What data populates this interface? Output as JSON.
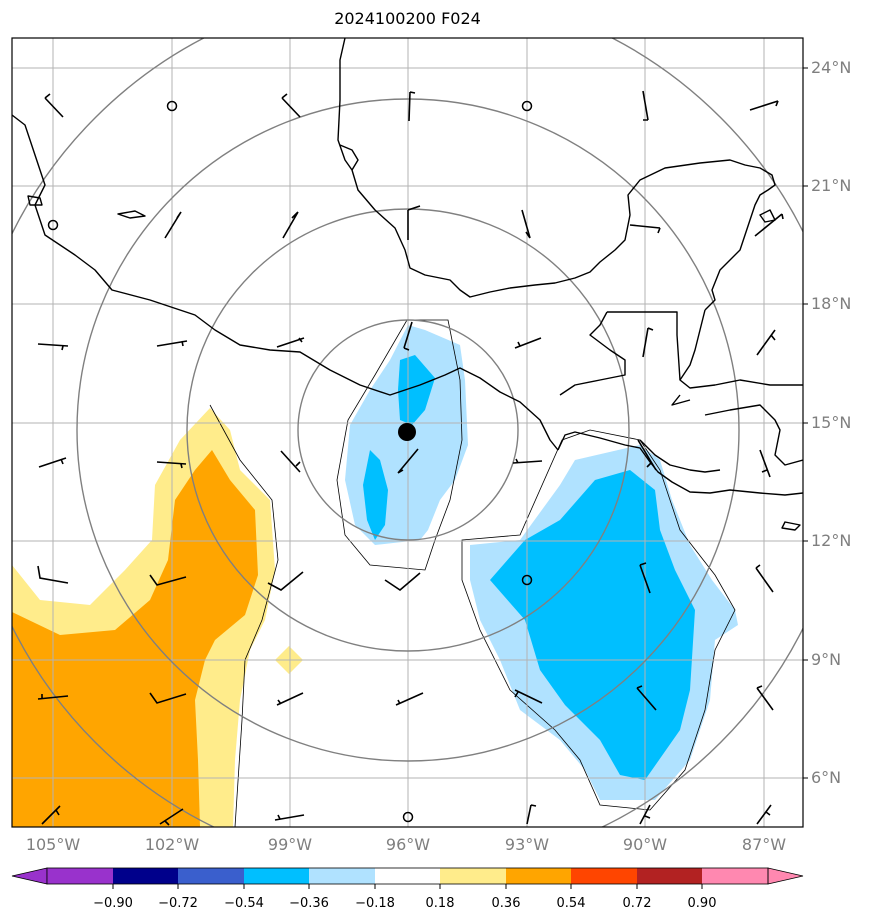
{
  "title": "2024100200 F024",
  "map": {
    "lat_labels": [
      "24°N",
      "21°N",
      "18°N",
      "15°N",
      "12°N",
      "9°N",
      "6°N"
    ],
    "lon_labels": [
      "105°W",
      "102°W",
      "99°W",
      "96°W",
      "93°W",
      "90°W",
      "87°W"
    ],
    "center_marker": {
      "lon": -96.0,
      "lat": 14.8
    }
  },
  "colorbar": {
    "labels": [
      "−0.90",
      "−0.72",
      "−0.54",
      "−0.36",
      "−0.18",
      "0.18",
      "0.36",
      "0.54",
      "0.72",
      "0.90"
    ],
    "colors": [
      "#9932cc",
      "#00008b",
      "#3a5fcd",
      "#00bfff",
      "#b0e2ff",
      "#ffffff",
      "#ffec8b",
      "#ffa500",
      "#ff4500",
      "#b22222",
      "#ff88b0"
    ],
    "fill_colors": {
      "strong_negative": "#00bfff",
      "weak_negative": "#b0e2ff",
      "weak_positive": "#ffec8b",
      "strong_positive": "#ffa500"
    }
  }
}
